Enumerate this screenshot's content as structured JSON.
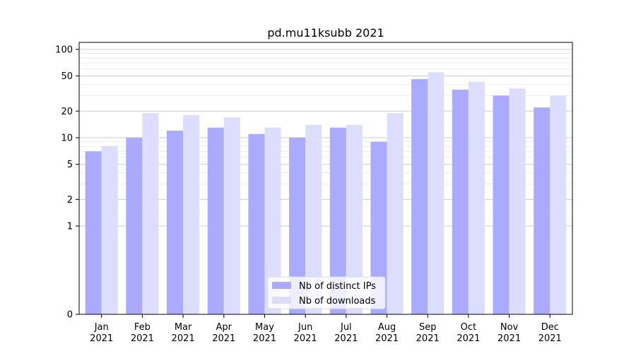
{
  "chart_data": {
    "type": "bar",
    "title": "pd.mu11ksubb 2021",
    "xlabel": "",
    "ylabel": "",
    "categories": [
      [
        "Jan",
        "2021"
      ],
      [
        "Feb",
        "2021"
      ],
      [
        "Mar",
        "2021"
      ],
      [
        "Apr",
        "2021"
      ],
      [
        "May",
        "2021"
      ],
      [
        "Jun",
        "2021"
      ],
      [
        "Jul",
        "2021"
      ],
      [
        "Aug",
        "2021"
      ],
      [
        "Sep",
        "2021"
      ],
      [
        "Oct",
        "2021"
      ],
      [
        "Nov",
        "2021"
      ],
      [
        "Dec",
        "2021"
      ]
    ],
    "series": [
      {
        "name": "Nb of distinct IPs",
        "color": "#aaaaff",
        "values": [
          7,
          10,
          12,
          13,
          11,
          10,
          13,
          9,
          46,
          35,
          30,
          22
        ]
      },
      {
        "name": "Nb of downloads",
        "color": "#ddddff",
        "values": [
          8,
          19,
          18,
          17,
          13,
          14,
          14,
          19,
          55,
          43,
          36,
          30
        ]
      }
    ],
    "yscale": "symlog",
    "ylim": [
      0,
      120
    ],
    "yticks": [
      0,
      1,
      2,
      5,
      10,
      20,
      50,
      100
    ],
    "grid": true,
    "legend": "lower-center"
  }
}
